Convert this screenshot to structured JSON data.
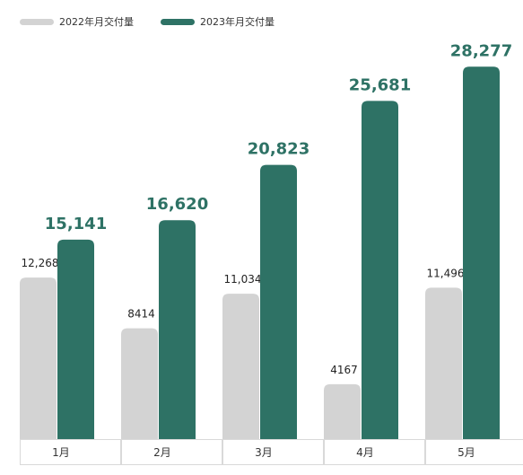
{
  "chart_data": {
    "type": "bar",
    "categories": [
      "1月",
      "2月",
      "3月",
      "4月",
      "5月"
    ],
    "series": [
      {
        "name": "2022年月交付量",
        "values": [
          12268,
          8414,
          11034,
          4167,
          11496
        ],
        "labels": [
          "12,268",
          "8414",
          "11,034",
          "4167",
          "11,496"
        ],
        "color": "#d3d3d3",
        "label_color": "#222222"
      },
      {
        "name": "2023年月交付量",
        "values": [
          15141,
          16620,
          20823,
          25681,
          28277
        ],
        "labels": [
          "15,141",
          "16,620",
          "20,823",
          "25,681",
          "28,277"
        ],
        "color": "#2e7265",
        "label_color": "#2e7265"
      }
    ],
    "ylim": [
      0,
      30000
    ],
    "legend": "top-left",
    "grid": false
  }
}
